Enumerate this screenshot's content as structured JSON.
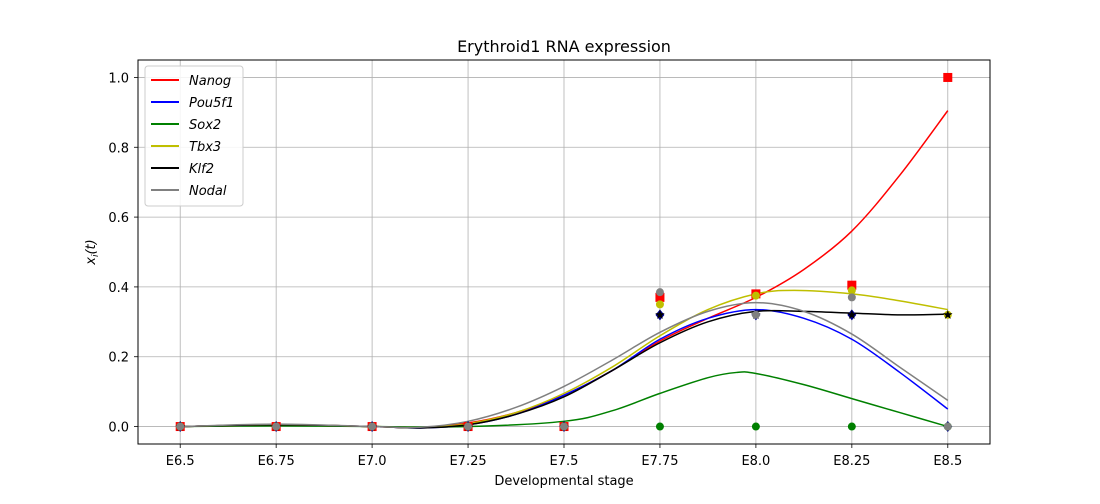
{
  "chart_data": {
    "type": "line",
    "title": "Erythroid1 RNA expression",
    "xlabel": "Developmental stage",
    "ylabel": "x_i(t)",
    "ylabel_main": "x",
    "ylabel_sub": "i",
    "ylabel_tail": "(t)",
    "x_ticks": [
      "E6.5",
      "E6.75",
      "E7.0",
      "E7.25",
      "E7.5",
      "E7.75",
      "E8.0",
      "E8.25",
      "E8.5"
    ],
    "x_values": [
      6.5,
      6.75,
      7.0,
      7.25,
      7.5,
      7.75,
      8.0,
      8.25,
      8.5
    ],
    "xlim": [
      6.39,
      8.61
    ],
    "y_ticks": [
      "0.0",
      "0.2",
      "0.4",
      "0.6",
      "0.8",
      "1.0"
    ],
    "ylim": [
      -0.05,
      1.05
    ],
    "grid": true,
    "legend_position": "top-left",
    "series": [
      {
        "name": "Nanog",
        "color": "#ff0000",
        "curve": [
          [
            6.5,
            0.0
          ],
          [
            6.75,
            0.005
          ],
          [
            7.0,
            0.0
          ],
          [
            7.125,
            -0.003
          ],
          [
            7.25,
            0.01
          ],
          [
            7.375,
            0.04
          ],
          [
            7.5,
            0.09
          ],
          [
            7.625,
            0.16
          ],
          [
            7.75,
            0.245
          ],
          [
            7.875,
            0.31
          ],
          [
            8.0,
            0.37
          ],
          [
            8.125,
            0.45
          ],
          [
            8.25,
            0.56
          ],
          [
            8.375,
            0.72
          ],
          [
            8.5,
            0.905
          ]
        ],
        "points": [
          [
            6.5,
            0.0
          ],
          [
            6.75,
            0.0
          ],
          [
            7.0,
            0.0
          ],
          [
            7.25,
            0.0
          ],
          [
            7.5,
            0.0
          ],
          [
            7.75,
            0.37
          ],
          [
            8.0,
            0.38
          ],
          [
            8.25,
            0.405
          ],
          [
            8.5,
            1.0
          ]
        ],
        "marker": "square"
      },
      {
        "name": "Pou5f1",
        "color": "#0000ff",
        "curve": [
          [
            6.5,
            0.0
          ],
          [
            6.75,
            0.005
          ],
          [
            7.0,
            0.0
          ],
          [
            7.125,
            -0.004
          ],
          [
            7.25,
            0.005
          ],
          [
            7.375,
            0.035
          ],
          [
            7.5,
            0.09
          ],
          [
            7.625,
            0.16
          ],
          [
            7.75,
            0.25
          ],
          [
            7.875,
            0.31
          ],
          [
            8.0,
            0.335
          ],
          [
            8.125,
            0.31
          ],
          [
            8.25,
            0.25
          ],
          [
            8.375,
            0.155
          ],
          [
            8.5,
            0.05
          ]
        ],
        "points": [
          [
            6.5,
            0.0
          ],
          [
            6.75,
            0.0
          ],
          [
            7.0,
            0.0
          ],
          [
            7.25,
            0.0
          ],
          [
            7.5,
            0.0
          ],
          [
            7.75,
            0.32
          ],
          [
            8.0,
            0.32
          ],
          [
            8.25,
            0.32
          ],
          [
            8.5,
            0.0
          ]
        ],
        "marker": "diamond"
      },
      {
        "name": "Sox2",
        "color": "#008000",
        "curve": [
          [
            6.5,
            0.0
          ],
          [
            6.75,
            0.002
          ],
          [
            7.0,
            0.0
          ],
          [
            7.25,
            0.0
          ],
          [
            7.5,
            0.015
          ],
          [
            7.625,
            0.045
          ],
          [
            7.75,
            0.095
          ],
          [
            7.875,
            0.14
          ],
          [
            7.95,
            0.155
          ],
          [
            8.0,
            0.152
          ],
          [
            8.125,
            0.12
          ],
          [
            8.25,
            0.08
          ],
          [
            8.375,
            0.04
          ],
          [
            8.5,
            0.0
          ]
        ],
        "points": [
          [
            6.5,
            0.0
          ],
          [
            6.75,
            0.0
          ],
          [
            7.0,
            0.0
          ],
          [
            7.25,
            0.0
          ],
          [
            7.5,
            0.0
          ],
          [
            7.75,
            0.0
          ],
          [
            8.0,
            0.0
          ],
          [
            8.25,
            0.0
          ],
          [
            8.5,
            0.0
          ]
        ],
        "marker": "circle"
      },
      {
        "name": "Tbx3",
        "color": "#bfbf00",
        "curve": [
          [
            6.5,
            0.0
          ],
          [
            6.75,
            0.005
          ],
          [
            7.0,
            0.0
          ],
          [
            7.125,
            -0.003
          ],
          [
            7.25,
            0.008
          ],
          [
            7.375,
            0.04
          ],
          [
            7.5,
            0.095
          ],
          [
            7.625,
            0.17
          ],
          [
            7.75,
            0.26
          ],
          [
            7.875,
            0.335
          ],
          [
            8.0,
            0.38
          ],
          [
            8.1,
            0.39
          ],
          [
            8.25,
            0.38
          ],
          [
            8.375,
            0.36
          ],
          [
            8.5,
            0.335
          ]
        ],
        "points": [
          [
            6.5,
            0.0
          ],
          [
            6.75,
            0.0
          ],
          [
            7.0,
            0.0
          ],
          [
            7.25,
            0.0
          ],
          [
            7.5,
            0.0
          ],
          [
            7.75,
            0.35
          ],
          [
            8.0,
            0.375
          ],
          [
            8.25,
            0.39
          ],
          [
            8.5,
            0.32
          ]
        ],
        "marker": "circle"
      },
      {
        "name": "Klf2",
        "color": "#000000",
        "curve": [
          [
            6.5,
            0.0
          ],
          [
            6.75,
            0.005
          ],
          [
            7.0,
            0.0
          ],
          [
            7.125,
            -0.004
          ],
          [
            7.25,
            0.005
          ],
          [
            7.375,
            0.035
          ],
          [
            7.5,
            0.085
          ],
          [
            7.625,
            0.16
          ],
          [
            7.75,
            0.24
          ],
          [
            7.875,
            0.3
          ],
          [
            8.0,
            0.33
          ],
          [
            8.125,
            0.33
          ],
          [
            8.25,
            0.325
          ],
          [
            8.375,
            0.32
          ],
          [
            8.5,
            0.322
          ]
        ],
        "points": [
          [
            6.5,
            0.0
          ],
          [
            6.75,
            0.0
          ],
          [
            7.0,
            0.0
          ],
          [
            7.25,
            0.0
          ],
          [
            7.5,
            0.0
          ],
          [
            7.75,
            0.32
          ],
          [
            8.0,
            0.32
          ],
          [
            8.25,
            0.32
          ],
          [
            8.5,
            0.32
          ]
        ],
        "marker": "star"
      },
      {
        "name": "Nodal",
        "color": "#808080",
        "curve": [
          [
            6.5,
            0.0
          ],
          [
            6.75,
            0.007
          ],
          [
            7.0,
            0.0
          ],
          [
            7.125,
            -0.002
          ],
          [
            7.25,
            0.015
          ],
          [
            7.375,
            0.055
          ],
          [
            7.5,
            0.115
          ],
          [
            7.625,
            0.19
          ],
          [
            7.75,
            0.27
          ],
          [
            7.875,
            0.33
          ],
          [
            8.0,
            0.355
          ],
          [
            8.125,
            0.33
          ],
          [
            8.25,
            0.265
          ],
          [
            8.375,
            0.17
          ],
          [
            8.5,
            0.075
          ]
        ],
        "points": [
          [
            6.5,
            0.0
          ],
          [
            6.75,
            0.0
          ],
          [
            7.0,
            0.0
          ],
          [
            7.25,
            0.0
          ],
          [
            7.5,
            0.0
          ],
          [
            7.75,
            0.385
          ],
          [
            8.0,
            0.32
          ],
          [
            8.25,
            0.37
          ],
          [
            8.5,
            0.0
          ]
        ],
        "marker": "circle"
      }
    ]
  }
}
